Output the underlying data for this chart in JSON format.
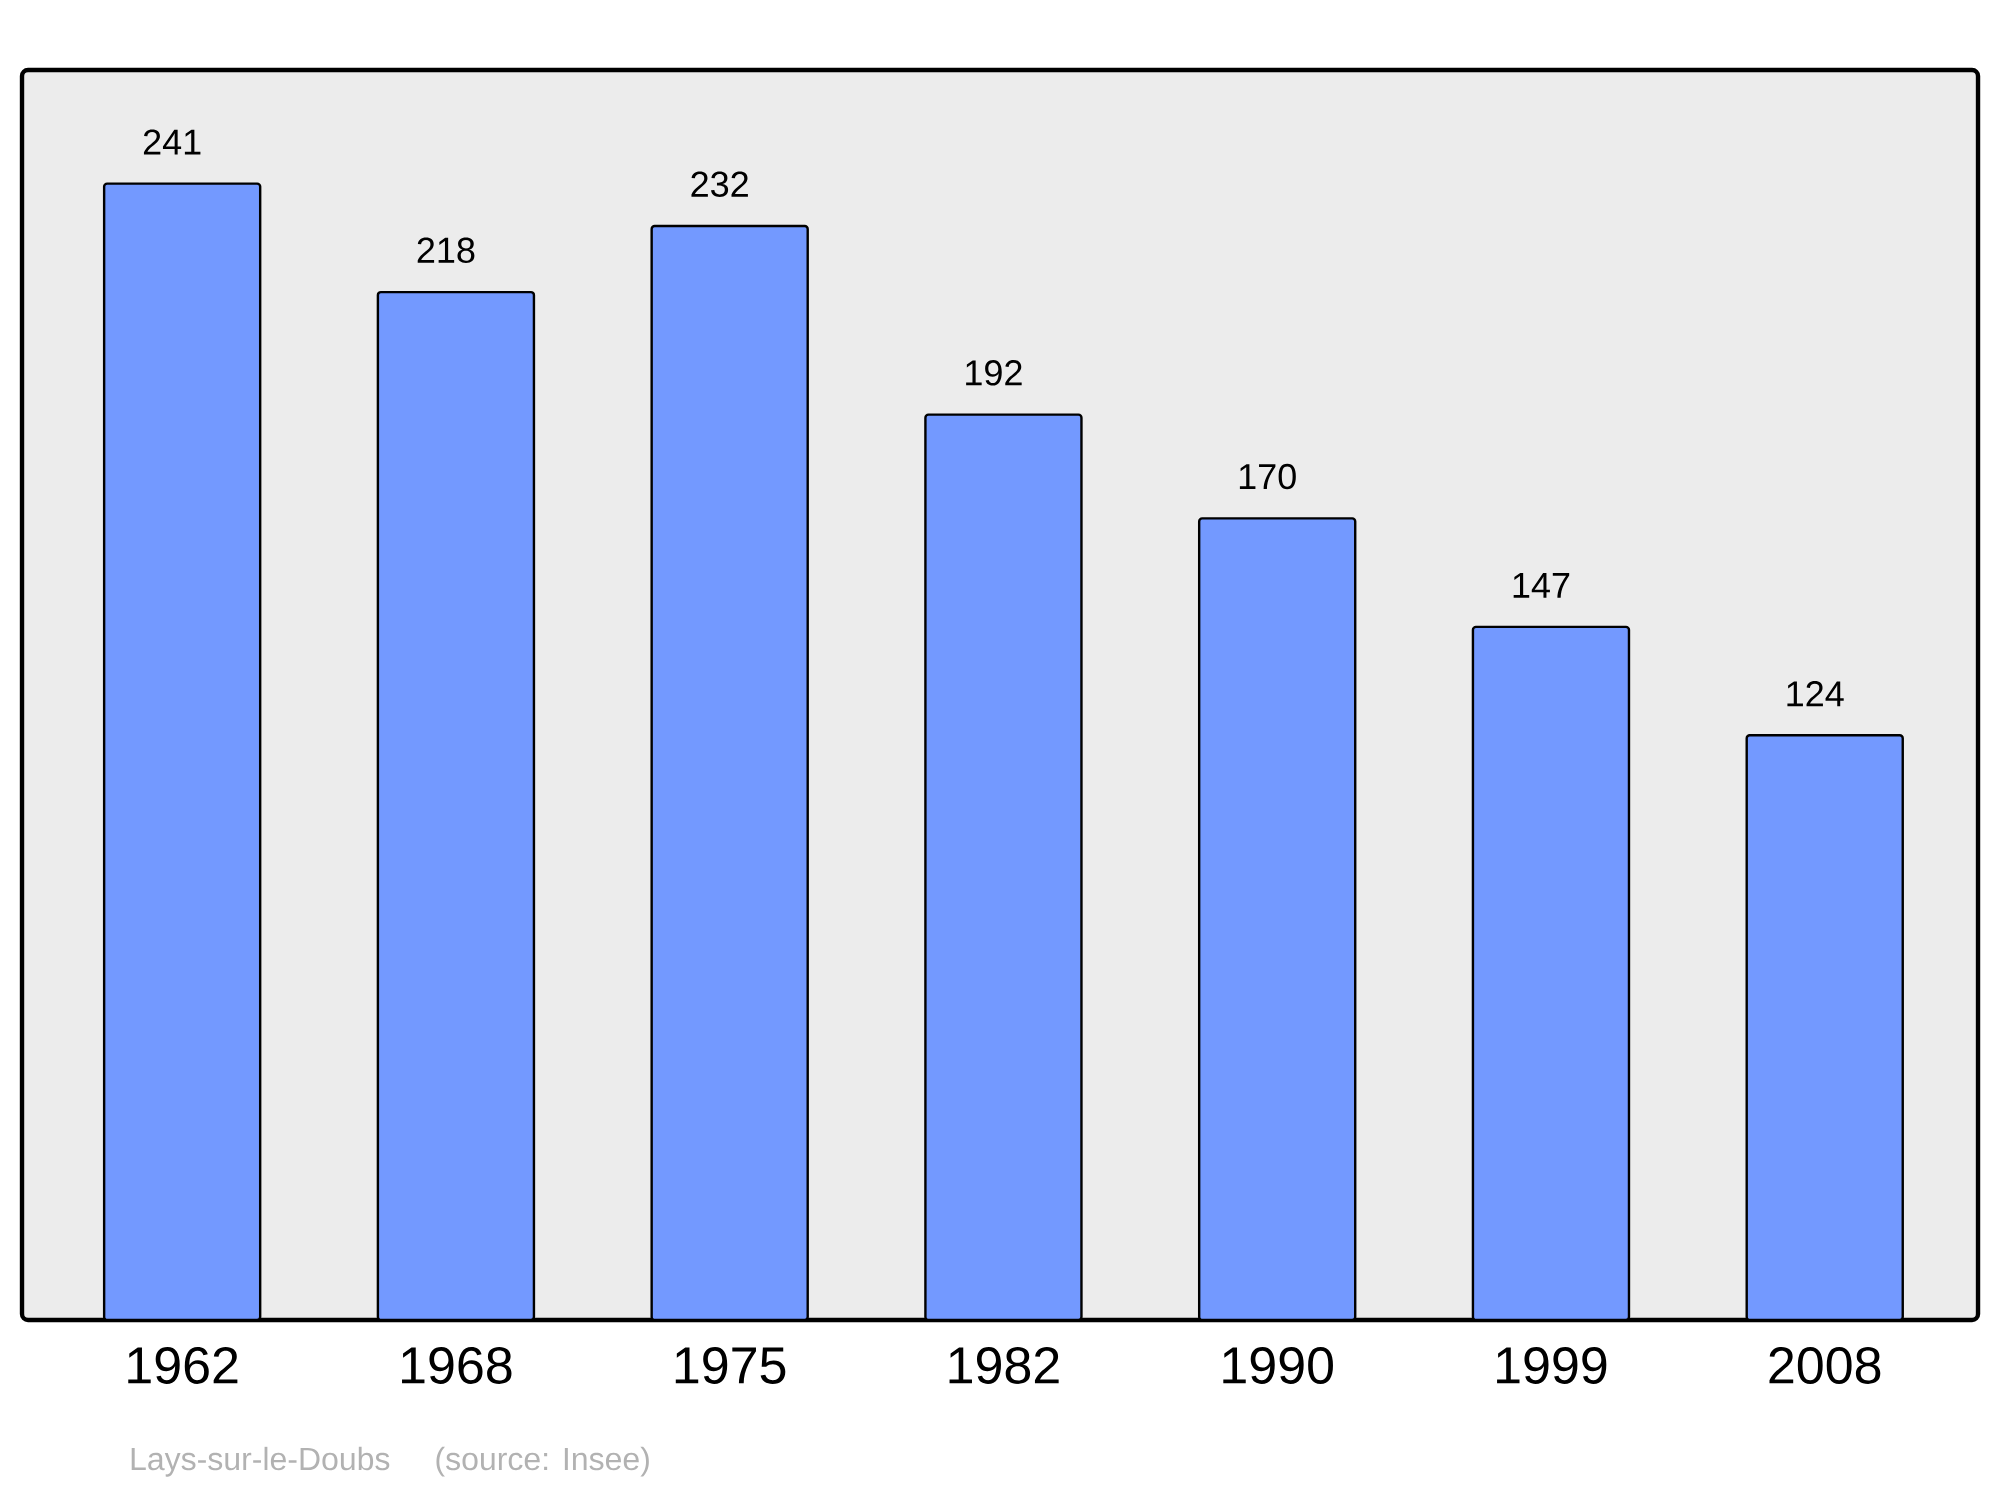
{
  "chart_data": {
    "type": "bar",
    "categories": [
      "1962",
      "1968",
      "1975",
      "1982",
      "1990",
      "1999",
      "2008"
    ],
    "values": [
      241,
      218,
      232,
      192,
      170,
      147,
      124
    ],
    "color": "#7399ff",
    "data_labels": true,
    "annotations": [
      "Lays-sur-le-Doubs",
      "(source: Insee)"
    ]
  }
}
